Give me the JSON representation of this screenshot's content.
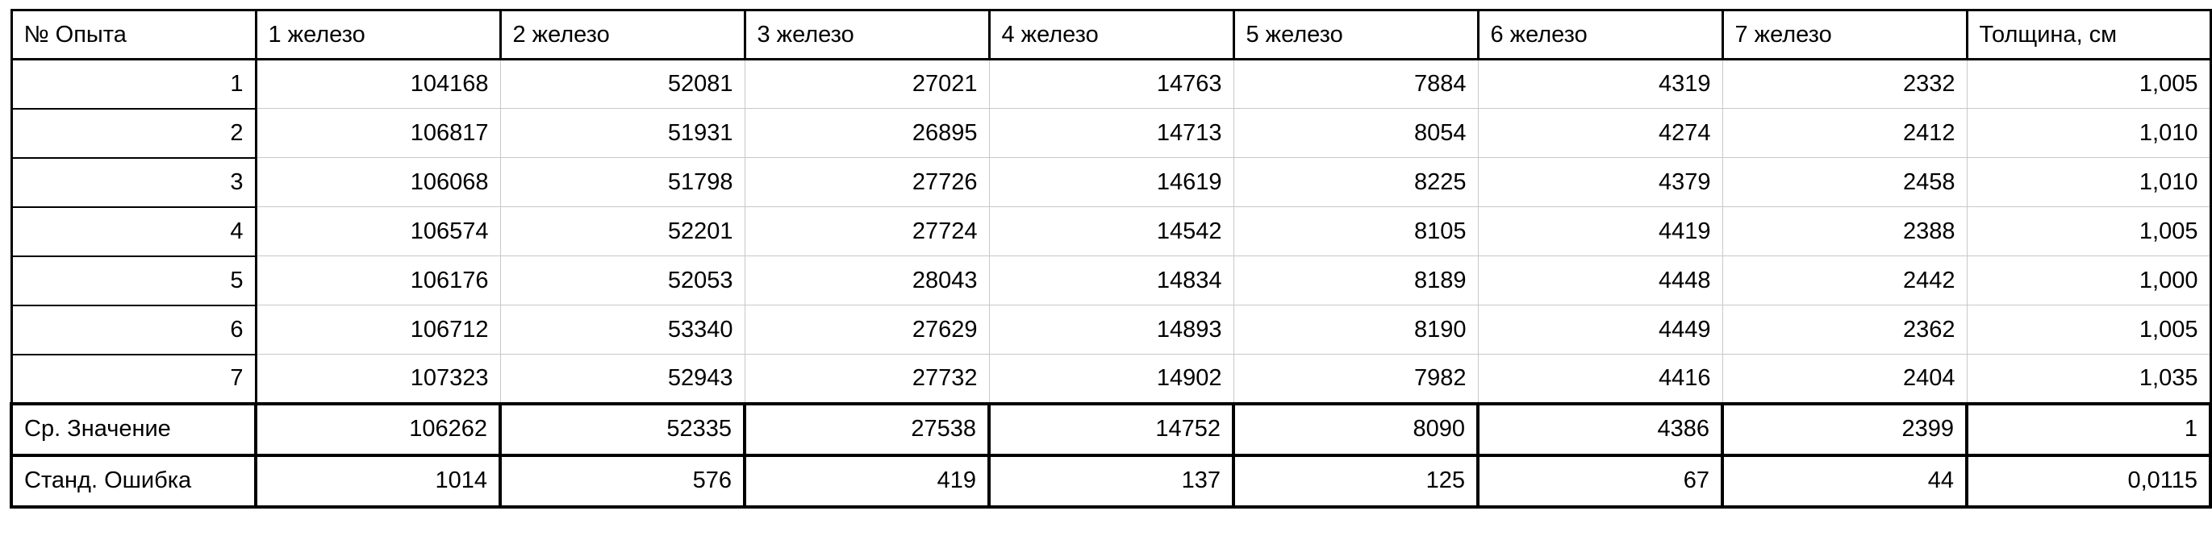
{
  "table": {
    "headers": [
      "№ Опыта",
      "1 железо",
      "2 железо",
      "3 железо",
      "4 железо",
      "5 железо",
      "6 железо",
      "7 железо",
      "Толщина, см"
    ],
    "rows": [
      [
        "1",
        "104168",
        "52081",
        "27021",
        "14763",
        "7884",
        "4319",
        "2332",
        "1,005"
      ],
      [
        "2",
        "106817",
        "51931",
        "26895",
        "14713",
        "8054",
        "4274",
        "2412",
        "1,010"
      ],
      [
        "3",
        "106068",
        "51798",
        "27726",
        "14619",
        "8225",
        "4379",
        "2458",
        "1,010"
      ],
      [
        "4",
        "106574",
        "52201",
        "27724",
        "14542",
        "8105",
        "4419",
        "2388",
        "1,005"
      ],
      [
        "5",
        "106176",
        "52053",
        "28043",
        "14834",
        "8189",
        "4448",
        "2442",
        "1,000"
      ],
      [
        "6",
        "106712",
        "53340",
        "27629",
        "14893",
        "8190",
        "4449",
        "2362",
        "1,005"
      ],
      [
        "7",
        "107323",
        "52943",
        "27732",
        "14902",
        "7982",
        "4416",
        "2404",
        "1,035"
      ]
    ],
    "summary": [
      [
        "Ср. Значение",
        "106262",
        "52335",
        "27538",
        "14752",
        "8090",
        "4386",
        "2399",
        "1"
      ],
      [
        "Станд. Ошибка",
        "1014",
        "576",
        "419",
        "137",
        "125",
        "67",
        "44",
        "0,0115"
      ]
    ]
  }
}
